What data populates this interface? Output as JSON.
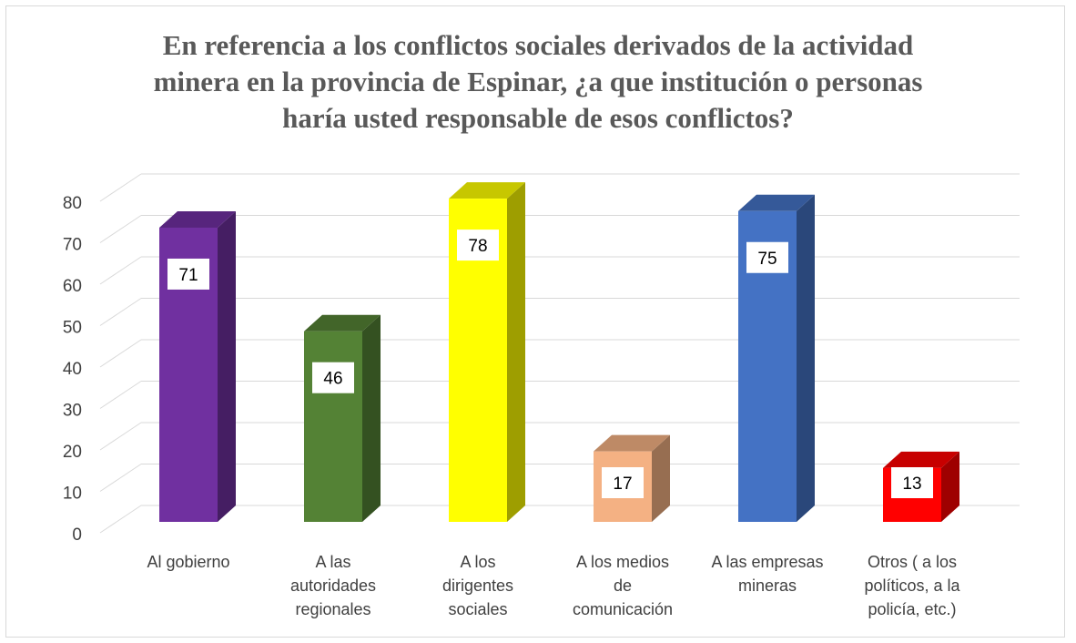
{
  "chart_data": {
    "type": "bar",
    "title_lines": [
      "En referencia a los conflictos sociales derivados de la actividad",
      "minera en la provincia de Espinar, ¿a que institución o personas",
      "haría usted responsable de esos conflictos?"
    ],
    "categories": [
      [
        "Al gobierno"
      ],
      [
        "A las",
        "autoridades",
        "regionales"
      ],
      [
        "A los",
        "dirigentes",
        "sociales"
      ],
      [
        "A los medios",
        "de",
        "comunicación"
      ],
      [
        "A las empresas",
        "mineras"
      ],
      [
        "Otros ( a los",
        "políticos, a la",
        "policía, etc.)"
      ]
    ],
    "values": [
      71,
      46,
      78,
      17,
      75,
      13
    ],
    "data_labels": [
      "71",
      "46",
      "78",
      "17",
      "75",
      "13"
    ],
    "colors": [
      "#7030a0",
      "#548235",
      "#ffff00",
      "#f4b183",
      "#4472c4",
      "#ff0000"
    ],
    "ylim": [
      0,
      80
    ],
    "yticks": [
      "0",
      "10",
      "20",
      "30",
      "40",
      "50",
      "60",
      "70",
      "80"
    ],
    "grid": true,
    "legend": "none",
    "style": "3d-column"
  }
}
